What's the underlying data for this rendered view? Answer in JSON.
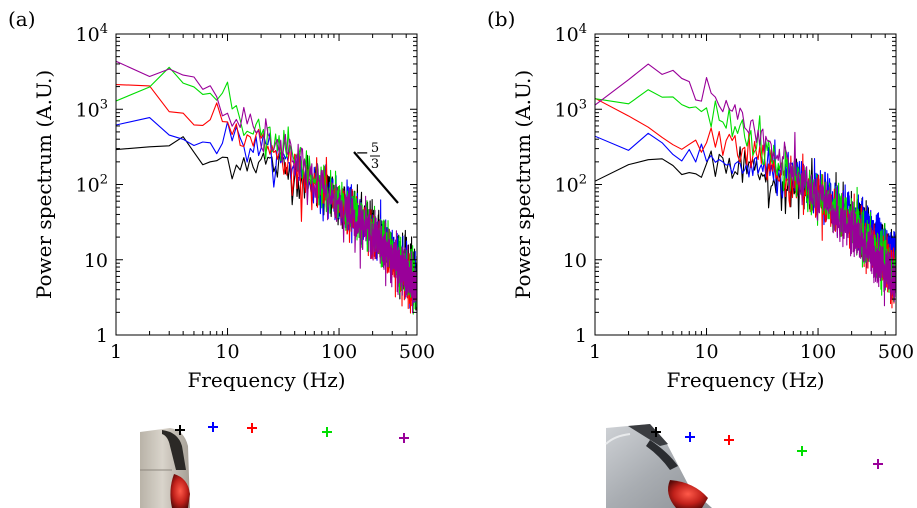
{
  "chart_data": [
    {
      "panel": "(a)",
      "type": "line",
      "xlabel": "Frequency (Hz)",
      "ylabel": "Power spectrum (A.U.)",
      "xscale": "log",
      "yscale": "log",
      "xlim": [
        1,
        500
      ],
      "ylim": [
        1,
        10000
      ],
      "xticks": [
        "1",
        "10",
        "100",
        "500"
      ],
      "yticks": [
        "1",
        "10",
        "10^2",
        "10^3",
        "10^4"
      ],
      "slope_annotation": {
        "minus": "−",
        "numerator": "5",
        "denominator": "3"
      },
      "series": [
        {
          "color": "#000000",
          "anchors": [
            [
              1,
              300
            ],
            [
              2,
              290
            ],
            [
              4,
              380
            ],
            [
              6,
              190
            ],
            [
              10,
              210
            ],
            [
              20,
              210
            ],
            [
              50,
              120
            ],
            [
              100,
              60
            ],
            [
              200,
              28
            ],
            [
              500,
              6
            ]
          ]
        },
        {
          "color": "#0000ff",
          "anchors": [
            [
              1,
              600
            ],
            [
              2,
              850
            ],
            [
              3,
              520
            ],
            [
              5,
              350
            ],
            [
              8,
              380
            ],
            [
              10,
              420
            ],
            [
              20,
              300
            ],
            [
              50,
              130
            ],
            [
              100,
              60
            ],
            [
              200,
              25
            ],
            [
              500,
              5
            ]
          ]
        },
        {
          "color": "#ff0000",
          "anchors": [
            [
              1,
              2100
            ],
            [
              2,
              1800
            ],
            [
              3,
              900
            ],
            [
              5,
              700
            ],
            [
              8,
              800
            ],
            [
              10,
              600
            ],
            [
              20,
              350
            ],
            [
              50,
              130
            ],
            [
              100,
              50
            ],
            [
              200,
              22
            ],
            [
              500,
              4
            ]
          ]
        },
        {
          "color": "#00dd00",
          "anchors": [
            [
              1,
              1300
            ],
            [
              2,
              2100
            ],
            [
              3,
              3500
            ],
            [
              5,
              1800
            ],
            [
              8,
              1600
            ],
            [
              10,
              1200
            ],
            [
              15,
              500
            ],
            [
              30,
              300
            ],
            [
              100,
              60
            ],
            [
              200,
              25
            ],
            [
              500,
              5
            ]
          ]
        },
        {
          "color": "#990099",
          "anchors": [
            [
              1,
              4000
            ],
            [
              2,
              2800
            ],
            [
              3,
              3600
            ],
            [
              5,
              2800
            ],
            [
              8,
              2000
            ],
            [
              10,
              900
            ],
            [
              20,
              450
            ],
            [
              50,
              150
            ],
            [
              100,
              55
            ],
            [
              200,
              22
            ],
            [
              500,
              4
            ]
          ]
        }
      ],
      "markers": [
        {
          "color": "#000000"
        },
        {
          "color": "#0000ff"
        },
        {
          "color": "#ff0000"
        },
        {
          "color": "#00dd00"
        },
        {
          "color": "#990099"
        }
      ]
    },
    {
      "panel": "(b)",
      "type": "line",
      "xlabel": "Frequency (Hz)",
      "ylabel": "Power spectrum (A.U.)",
      "xscale": "log",
      "yscale": "log",
      "xlim": [
        1,
        500
      ],
      "ylim": [
        1,
        10000
      ],
      "xticks": [
        "1",
        "10",
        "100",
        "500"
      ],
      "yticks": [
        "1",
        "10",
        "10^2",
        "10^3",
        "10^4"
      ],
      "series": [
        {
          "color": "#000000",
          "anchors": [
            [
              1,
              110
            ],
            [
              2,
              180
            ],
            [
              4,
              250
            ],
            [
              6,
              140
            ],
            [
              10,
              180
            ],
            [
              20,
              150
            ],
            [
              50,
              110
            ],
            [
              100,
              70
            ],
            [
              200,
              35
            ],
            [
              500,
              10
            ]
          ]
        },
        {
          "color": "#0000ff",
          "anchors": [
            [
              1,
              420
            ],
            [
              2,
              300
            ],
            [
              3,
              450
            ],
            [
              5,
              250
            ],
            [
              10,
              200
            ],
            [
              20,
              180
            ],
            [
              50,
              130
            ],
            [
              100,
              80
            ],
            [
              200,
              40
            ],
            [
              500,
              12
            ]
          ]
        },
        {
          "color": "#ff0000",
          "anchors": [
            [
              1,
              1400
            ],
            [
              2,
              750
            ],
            [
              3,
              600
            ],
            [
              5,
              300
            ],
            [
              10,
              380
            ],
            [
              15,
              520
            ],
            [
              30,
              220
            ],
            [
              50,
              120
            ],
            [
              100,
              70
            ],
            [
              200,
              30
            ],
            [
              500,
              6
            ]
          ]
        },
        {
          "color": "#00dd00",
          "anchors": [
            [
              1,
              1300
            ],
            [
              2,
              1200
            ],
            [
              3,
              2000
            ],
            [
              5,
              1300
            ],
            [
              10,
              1000
            ],
            [
              15,
              800
            ],
            [
              30,
              300
            ],
            [
              100,
              70
            ],
            [
              200,
              30
            ],
            [
              500,
              6
            ]
          ]
        },
        {
          "color": "#990099",
          "anchors": [
            [
              1,
              1400
            ],
            [
              2,
              2500
            ],
            [
              3,
              3800
            ],
            [
              5,
              2800
            ],
            [
              8,
              2400
            ],
            [
              10,
              1800
            ],
            [
              20,
              800
            ],
            [
              50,
              180
            ],
            [
              100,
              65
            ],
            [
              200,
              25
            ],
            [
              500,
              5
            ]
          ]
        }
      ],
      "markers": [
        {
          "color": "#000000"
        },
        {
          "color": "#0000ff"
        },
        {
          "color": "#ff0000"
        },
        {
          "color": "#00dd00"
        },
        {
          "color": "#990099"
        }
      ]
    }
  ]
}
